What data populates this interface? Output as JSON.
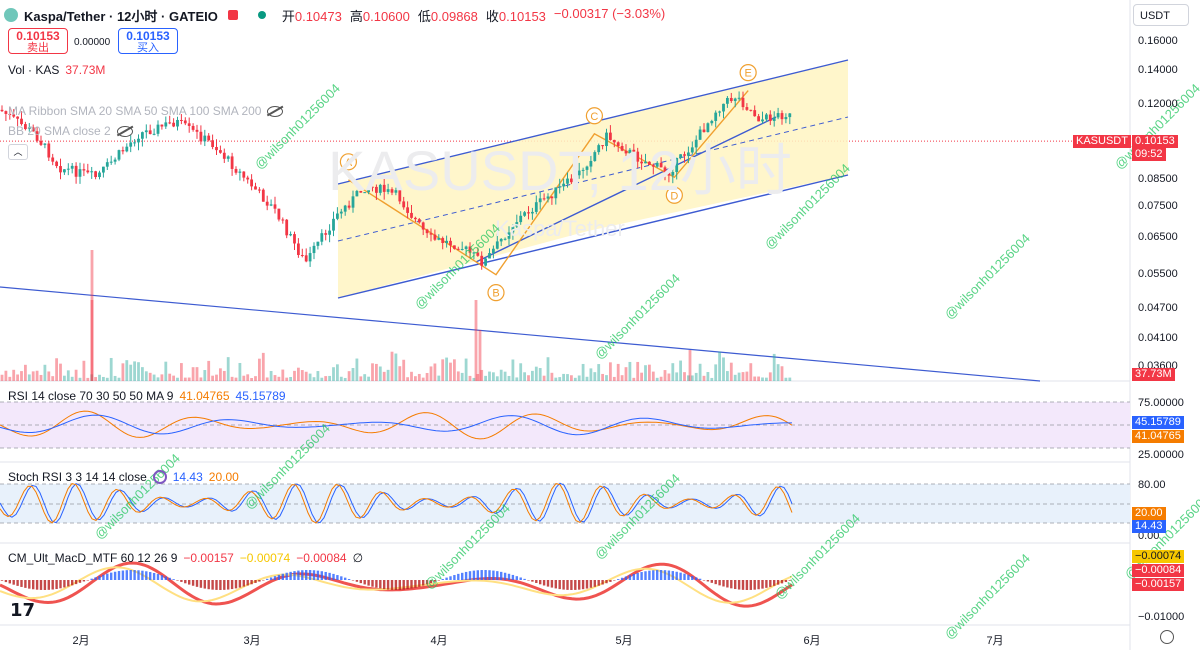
{
  "header": {
    "title": "Kaspa/Tether · 12小时 · GATEIO",
    "ohlc": {
      "open_label": "开",
      "open": "0.10473",
      "high_label": "高",
      "high": "0.10600",
      "low_label": "低",
      "low": "0.09868",
      "close_label": "收",
      "close": "0.10153",
      "change": "−0.00317 (−3.03%)"
    }
  },
  "trade": {
    "sell_price": "0.10153",
    "sell_label": "卖出",
    "spread": "0.00000",
    "buy_price": "0.10153",
    "buy_label": "买入"
  },
  "currency_button": "USDT",
  "indicators": {
    "vol_label": "Vol · KAS",
    "vol_value": "37.73M",
    "rsi_label": "RSI 14 close 70 30 50 50 MA 9",
    "rsi_v1": "41.04765",
    "rsi_v2": "45.15789",
    "stoch_label": "Stoch RSI 3 3 14 14 close",
    "stoch_k": "14.43",
    "stoch_d": "20.00",
    "macd_label": "CM_Ult_MacD_MTF 60 12 26 9",
    "macd_v1": "−0.00157",
    "macd_v2": "−0.00074",
    "macd_v3": "−0.00084"
  },
  "hidden_rows": [
    "MA Ribbon SMA 20 SMA 50 SMA 100 SMA 200",
    "BB 20 SMA close 2"
  ],
  "price_tag": {
    "symbol": "KASUSDT",
    "price": "0.10153",
    "countdown": "09:52"
  },
  "watermark": {
    "main": "KASUSDT, 12小时",
    "sub": "Kaspa/Tether",
    "overlay": "@wilsonh01256004"
  },
  "wave_labels": [
    "A",
    "B",
    "C",
    "D",
    "E"
  ],
  "colors": {
    "up": "#26a69a",
    "down": "#f23645",
    "channel": "#3d5bd1",
    "fill": "#fff4c2",
    "wave": "#f0a030",
    "rsi": "#7e57c2"
  },
  "right_tags": [
    {
      "text": "37.73M",
      "color": "#f23645"
    },
    {
      "text": "45.15789",
      "color": "#2962ff"
    },
    {
      "text": "41.04765",
      "color": "#f57c00"
    },
    {
      "text": "20.00",
      "color": "#f57c00"
    },
    {
      "text": "14.43",
      "color": "#2962ff"
    },
    {
      "text": "−0.00074",
      "color": "#f6c700"
    },
    {
      "text": "−0.00084",
      "color": "#f23645"
    },
    {
      "text": "−0.00157",
      "color": "#f23645"
    }
  ],
  "chart_data": {
    "type": "candlestick",
    "price_axis": {
      "scale": "log",
      "ticks": [
        "0.16000",
        "0.14000",
        "0.12000",
        "0.10153",
        "0.08500",
        "0.07500",
        "0.06500",
        "0.05500",
        "0.04700",
        "0.04100",
        "0.03600"
      ]
    },
    "rsi_axis": {
      "ticks": [
        "75.00000",
        "25.00000"
      ]
    },
    "stoch_axis": {
      "ticks": [
        "80.00",
        "0.00"
      ]
    },
    "macd_axis": {
      "ticks": [
        "−0.01000"
      ]
    },
    "x_labels": [
      "2月",
      "3月",
      "4月",
      "5月",
      "6月",
      "7月"
    ],
    "close_path": [
      {
        "date": "2025-01-14",
        "close": 0.125
      },
      {
        "date": "2025-01-20",
        "close": 0.118
      },
      {
        "date": "2025-01-26",
        "close": 0.105
      },
      {
        "date": "2025-01-30",
        "close": 0.09
      },
      {
        "date": "2025-02-05",
        "close": 0.086
      },
      {
        "date": "2025-02-12",
        "close": 0.105
      },
      {
        "date": "2025-02-18",
        "close": 0.111
      },
      {
        "date": "2025-02-24",
        "close": 0.1
      },
      {
        "date": "2025-03-01",
        "close": 0.086
      },
      {
        "date": "2025-03-06",
        "close": 0.074
      },
      {
        "date": "2025-03-11",
        "close": 0.058
      },
      {
        "date": "2025-03-16",
        "close": 0.072
      },
      {
        "date": "2025-03-21",
        "close": 0.083
      },
      {
        "date": "2025-03-26",
        "close": 0.079
      },
      {
        "date": "2025-03-31",
        "close": 0.065
      },
      {
        "date": "2025-04-05",
        "close": 0.063
      },
      {
        "date": "2025-04-09",
        "close": 0.058
      },
      {
        "date": "2025-04-14",
        "close": 0.07
      },
      {
        "date": "2025-04-19",
        "close": 0.078
      },
      {
        "date": "2025-04-24",
        "close": 0.086
      },
      {
        "date": "2025-04-29",
        "close": 0.104
      },
      {
        "date": "2025-05-04",
        "close": 0.094
      },
      {
        "date": "2025-05-09",
        "close": 0.088
      },
      {
        "date": "2025-05-13",
        "close": 0.1
      },
      {
        "date": "2025-05-17",
        "close": 0.118
      },
      {
        "date": "2025-05-20",
        "close": 0.125
      },
      {
        "date": "2025-05-24",
        "close": 0.112
      },
      {
        "date": "2025-05-28",
        "close": 0.115
      },
      {
        "date": "2025-06-01",
        "close": 0.108
      },
      {
        "date": "2025-06-04",
        "close": 0.1015
      }
    ],
    "annotations": [
      {
        "label": "A",
        "date": "2025-03-18",
        "price": 0.085
      },
      {
        "label": "B",
        "date": "2025-04-11",
        "price": 0.055
      },
      {
        "label": "C",
        "date": "2025-04-27",
        "price": 0.105
      },
      {
        "label": "D",
        "date": "2025-05-10",
        "price": 0.086
      },
      {
        "label": "E",
        "date": "2025-05-22",
        "price": 0.128
      }
    ]
  }
}
